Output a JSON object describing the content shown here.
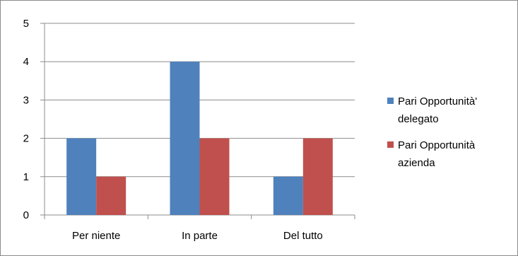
{
  "chart_data": {
    "type": "bar",
    "categories": [
      "Per niente",
      "In parte",
      "Del tutto"
    ],
    "series": [
      {
        "name": "Pari Opportunità' delegato",
        "legend_lines": [
          "Pari Opportunità'",
          "delegato"
        ],
        "values": [
          2,
          4,
          1
        ],
        "color": "#4f81bd"
      },
      {
        "name": "Pari Opportunità azienda",
        "legend_lines": [
          "Pari Opportunità",
          "azienda"
        ],
        "values": [
          1,
          2,
          2
        ],
        "color": "#c0504d"
      }
    ],
    "ylim": [
      0,
      5
    ],
    "yticks": [
      "0",
      "1",
      "2",
      "3",
      "4",
      "5"
    ],
    "grid": true,
    "legend_position": "right"
  }
}
